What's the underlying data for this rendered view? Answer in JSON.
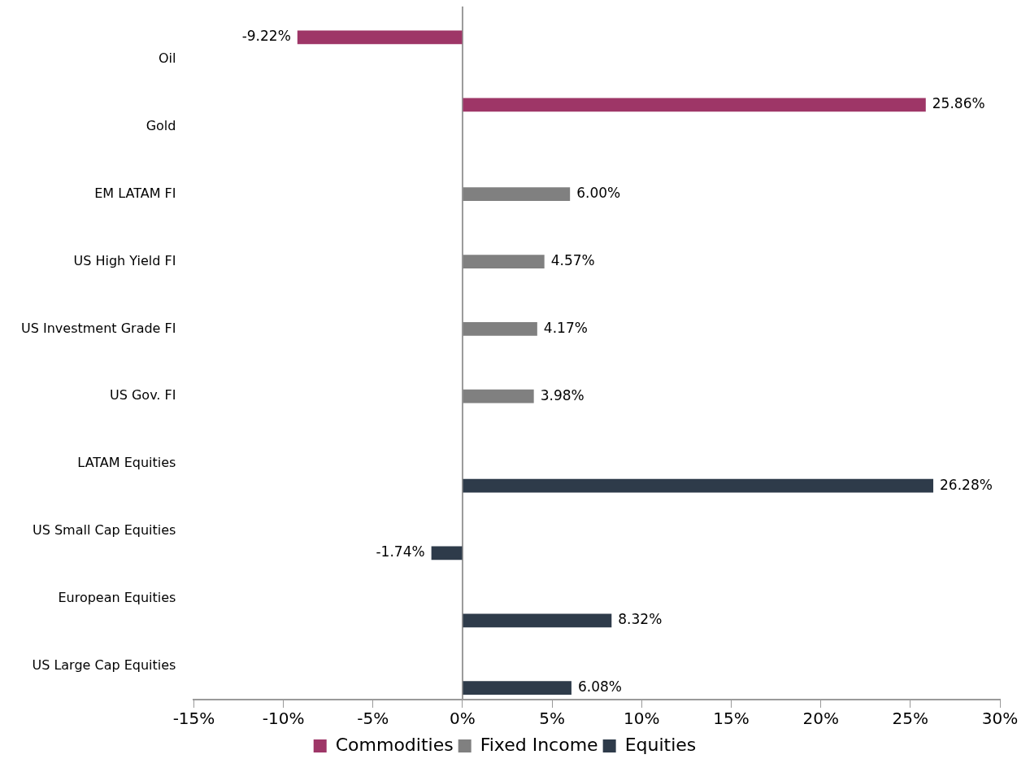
{
  "chart_data": {
    "type": "bar",
    "orientation": "horizontal",
    "categories": [
      "Oil",
      "Gold",
      "EM LATAM FI",
      "US High Yield FI",
      "US Investment Grade FI",
      "US Gov. FI",
      "LATAM Equities",
      "US Small Cap Equities",
      "European Equities",
      "US Large Cap Equities"
    ],
    "series": [
      {
        "name": "Commodities",
        "color": "#9e3667",
        "values": [
          -9.22,
          25.86,
          null,
          null,
          null,
          null,
          null,
          null,
          null,
          null
        ],
        "value_labels": [
          "-9.22%",
          "25.86%",
          null,
          null,
          null,
          null,
          null,
          null,
          null,
          null
        ]
      },
      {
        "name": "Fixed Income",
        "color": "#808080",
        "values": [
          null,
          null,
          6.0,
          4.57,
          4.17,
          3.98,
          null,
          null,
          null,
          null
        ],
        "value_labels": [
          null,
          null,
          "6.00%",
          "4.57%",
          "4.17%",
          "3.98%",
          null,
          null,
          null,
          null
        ]
      },
      {
        "name": "Equities",
        "color": "#2e3b4a",
        "values": [
          null,
          null,
          null,
          null,
          null,
          null,
          26.28,
          -1.74,
          8.32,
          6.08
        ],
        "value_labels": [
          null,
          null,
          null,
          null,
          null,
          null,
          "26.28%",
          "-1.74%",
          "8.32%",
          "6.08%"
        ]
      }
    ],
    "xlim": [
      -15,
      30
    ],
    "xticks": [
      {
        "value": -15,
        "label": "-15%"
      },
      {
        "value": -10,
        "label": "-10%"
      },
      {
        "value": -5,
        "label": "-5%"
      },
      {
        "value": 0,
        "label": "0%"
      },
      {
        "value": 5,
        "label": "5%"
      },
      {
        "value": 10,
        "label": "10%"
      },
      {
        "value": 15,
        "label": "15%"
      },
      {
        "value": 20,
        "label": "20%"
      },
      {
        "value": 25,
        "label": "25%"
      },
      {
        "value": 30,
        "label": "30%"
      }
    ],
    "legend": "bottom"
  }
}
